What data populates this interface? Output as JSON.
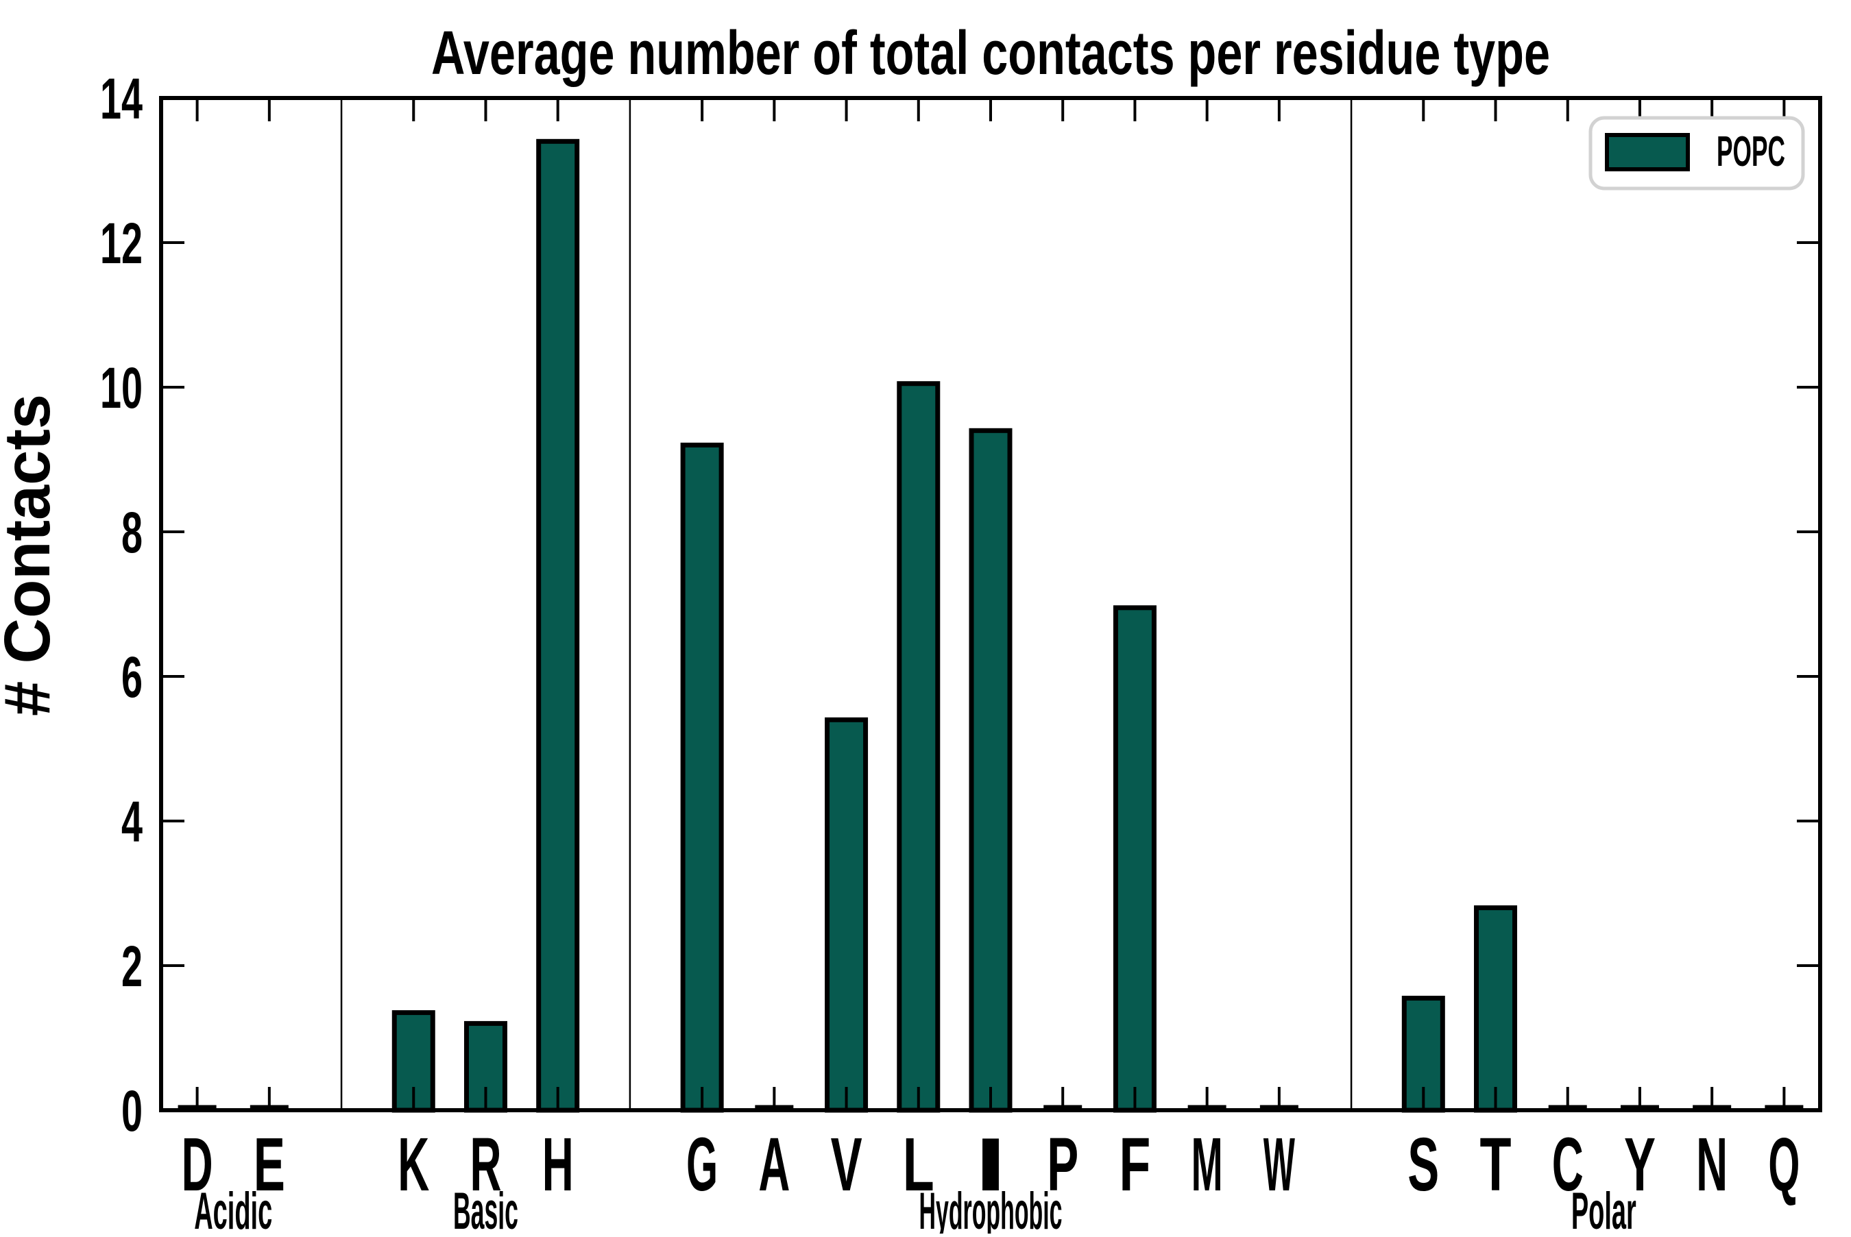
{
  "chart_data": {
    "type": "bar",
    "title": "Average number of total contacts per residue type",
    "xlabel": "",
    "ylabel": "# Contacts",
    "ylim": [
      0,
      14
    ],
    "yticks": [
      0,
      2,
      4,
      6,
      8,
      10,
      12,
      14
    ],
    "grid": false,
    "legend": {
      "label": "POPC",
      "position": "upper right"
    },
    "bar_color": "#075a4f",
    "bar_edge_color": "#000000",
    "groups": [
      {
        "label": "Acidic",
        "categories": [
          "D",
          "E"
        ],
        "values": [
          0,
          0
        ]
      },
      {
        "label": "Basic",
        "categories": [
          "K",
          "R",
          "H"
        ],
        "values": [
          1.35,
          1.2,
          13.4
        ]
      },
      {
        "label": "Hydrophobic",
        "categories": [
          "G",
          "A",
          "V",
          "L",
          "I",
          "P",
          "F",
          "M",
          "W"
        ],
        "values": [
          9.2,
          0,
          5.4,
          10.05,
          9.4,
          0,
          6.95,
          0,
          0
        ]
      },
      {
        "label": "Polar",
        "categories": [
          "S",
          "T",
          "C",
          "Y",
          "N",
          "Q"
        ],
        "values": [
          1.55,
          2.8,
          0,
          0,
          0,
          0
        ]
      }
    ]
  }
}
